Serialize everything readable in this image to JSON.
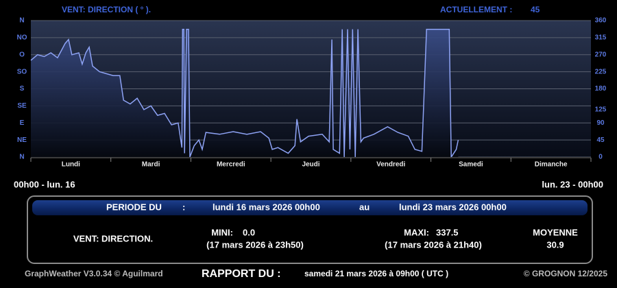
{
  "chart_data": {
    "type": "line",
    "title": "VENT: DIRECTION ( ° ).",
    "current_label": "ACTUELLEMENT :",
    "current_value": 45,
    "color": "#8ea3f5",
    "x": [
      0,
      2,
      4,
      6,
      8,
      10.3,
      11.3,
      12.3,
      14.4,
      15.4,
      16.5,
      17.5,
      18.5,
      20.6,
      22.6,
      24.7,
      26.7,
      27.8,
      29.8,
      31.9,
      33.9,
      36,
      38,
      40.1,
      42.2,
      44.2,
      45.3,
      45.5,
      45.9,
      46.1,
      46.7,
      47.3,
      47.7,
      49,
      50.4,
      51.4,
      52.5,
      56.6,
      60.7,
      64.8,
      68.9,
      71.4,
      72.4,
      74.1,
      77.2,
      79.2,
      79.8,
      80.9,
      83.3,
      87.4,
      89.5,
      90.3,
      90.7,
      92.6,
      93.4,
      94,
      95,
      95.7,
      96.5,
      97.3,
      98.1,
      99,
      99.8,
      102.9,
      107,
      110.1,
      113.2,
      115.2,
      117.3,
      118.7,
      122.4,
      125.5,
      126.1,
      127.6,
      128.2
    ],
    "values": [
      255,
      270,
      265,
      275,
      262,
      300,
      310,
      270,
      275,
      245,
      275,
      290,
      240,
      225,
      220,
      215,
      215,
      150,
      140,
      155,
      125,
      135,
      110,
      115,
      85,
      90,
      25,
      337,
      337,
      10,
      337,
      337,
      0,
      30,
      45,
      20,
      65,
      60,
      67,
      60,
      67,
      50,
      20,
      25,
      10,
      30,
      100,
      40,
      55,
      60,
      40,
      310,
      20,
      10,
      337,
      0,
      337,
      20,
      337,
      0,
      337,
      40,
      50,
      60,
      80,
      65,
      55,
      20,
      15,
      337,
      337,
      337,
      0,
      20,
      45
    ],
    "xlim": [
      0,
      168
    ],
    "xticks": [
      0,
      24,
      48,
      72,
      96,
      120,
      144,
      168
    ],
    "day_labels": [
      "Lundi",
      "Mardi",
      "Mercredi",
      "Jeudi",
      "Vendredi",
      "Samedi",
      "Dimanche"
    ],
    "ylim": [
      0,
      360
    ],
    "yticks": [
      {
        "value": 360,
        "label": "N"
      },
      {
        "value": 315,
        "label": "NO"
      },
      {
        "value": 270,
        "label": "O"
      },
      {
        "value": 225,
        "label": "SO"
      },
      {
        "value": 180,
        "label": "S"
      },
      {
        "value": 135,
        "label": "SE"
      },
      {
        "value": 90,
        "label": "E"
      },
      {
        "value": 45,
        "label": "NE"
      },
      {
        "value": 0,
        "label": "N"
      }
    ],
    "y2lim": [
      0,
      360
    ],
    "y2ticks": [
      360,
      315,
      270,
      225,
      180,
      125,
      90,
      45,
      0
    ],
    "grid": true
  },
  "range_start": "00h00 - lun. 16",
  "range_end": "lun. 23 - 00h00",
  "period": {
    "label": "PERIODE DU",
    "separator": ":",
    "start": "lundi 16 mars 2026 00h00",
    "between": "au",
    "end": "lundi 23 mars 2026 00h00"
  },
  "stats": {
    "name": "VENT: DIRECTION.",
    "mini": {
      "label": "MINI:",
      "value": "0.0",
      "date": "(17 mars 2026 à 23h50)"
    },
    "maxi": {
      "label": "MAXI:",
      "value": "337.5",
      "date": "(17 mars 2026 à 21h40)"
    },
    "average": {
      "label": "MOYENNE",
      "value": "30.9"
    }
  },
  "footer": {
    "software": "GraphWeather V3.0.34 © Aguilmard",
    "report_label": "RAPPORT DU :",
    "report_date": "samedi 21 mars 2026 à 09h00 ( UTC )",
    "copyright": "© GROGNON 12/2025"
  }
}
